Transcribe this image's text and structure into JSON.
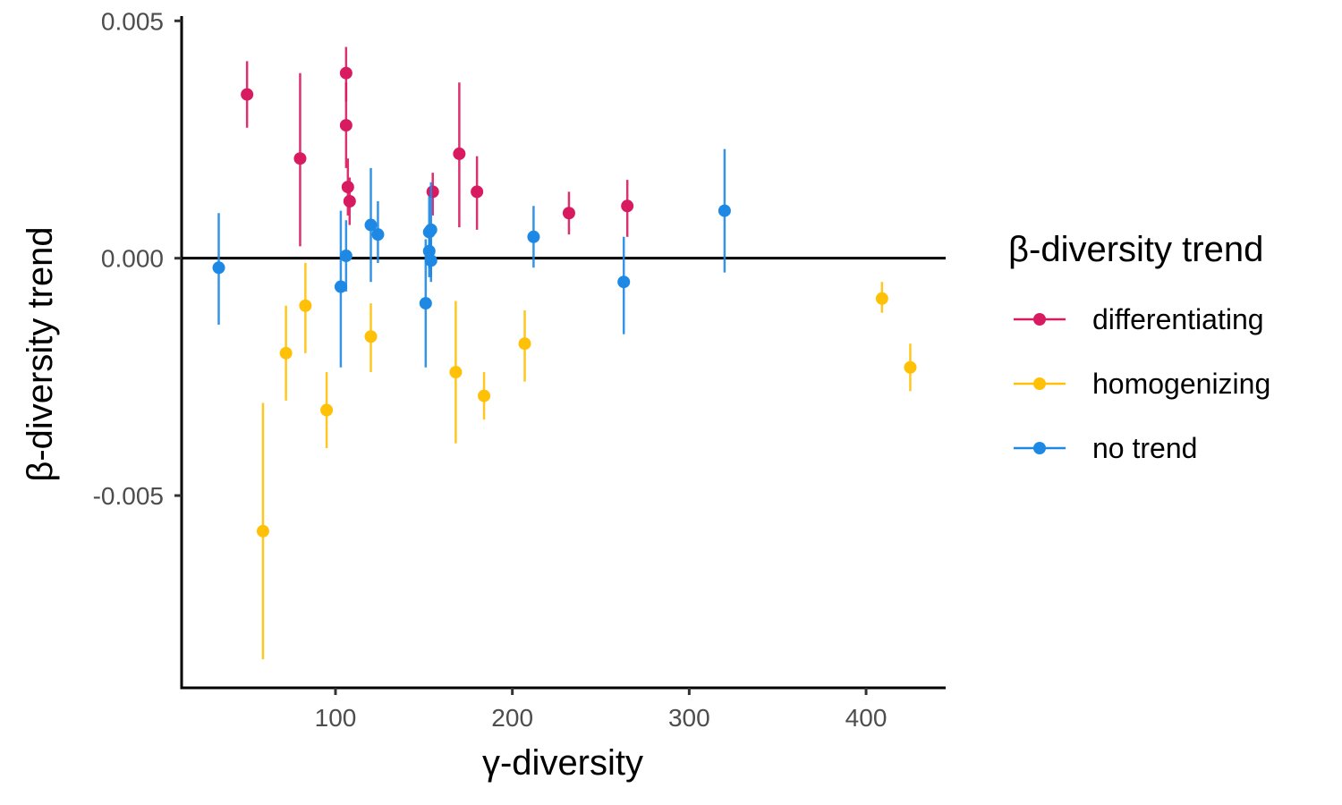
{
  "chart_data": {
    "type": "scatter",
    "xlabel": "γ-diversity",
    "ylabel": "β-diversity trend",
    "xlim": [
      13,
      445
    ],
    "ylim": [
      -0.00905,
      0.0051
    ],
    "x_ticks": [
      100,
      200,
      300,
      400
    ],
    "x_tick_labels": [
      "100",
      "200",
      "300",
      "400"
    ],
    "y_ticks": [
      0.005,
      0.0,
      -0.005
    ],
    "y_tick_labels": [
      "0.005",
      "0.000",
      "-0.005"
    ],
    "grid": false,
    "reference_line_y": 0,
    "legend": {
      "title": "β-diversity trend",
      "placement": "right"
    },
    "series": [
      {
        "name": "differentiating",
        "color": "#D81B60",
        "points": [
          {
            "x": 50,
            "y": 0.00345,
            "lo": 0.00275,
            "hi": 0.00415
          },
          {
            "x": 80,
            "y": 0.0021,
            "lo": 0.00025,
            "hi": 0.0039
          },
          {
            "x": 106,
            "y": 0.0039,
            "lo": 0.0033,
            "hi": 0.00445
          },
          {
            "x": 106,
            "y": 0.0028,
            "lo": 0.0019,
            "hi": 0.0037
          },
          {
            "x": 107,
            "y": 0.0015,
            "lo": 0.0009,
            "hi": 0.0021
          },
          {
            "x": 108,
            "y": 0.0012,
            "lo": 0.0007,
            "hi": 0.0017
          },
          {
            "x": 155,
            "y": 0.0014,
            "lo": 0.0009,
            "hi": 0.0018
          },
          {
            "x": 170,
            "y": 0.0022,
            "lo": 0.00065,
            "hi": 0.0037
          },
          {
            "x": 180,
            "y": 0.0014,
            "lo": 0.0006,
            "hi": 0.00215
          },
          {
            "x": 232,
            "y": 0.00095,
            "lo": 0.0005,
            "hi": 0.0014
          },
          {
            "x": 265,
            "y": 0.0011,
            "lo": 0.00045,
            "hi": 0.00165
          }
        ]
      },
      {
        "name": "homogenizing",
        "color": "#FFC107",
        "points": [
          {
            "x": 59,
            "y": -0.00575,
            "lo": -0.00845,
            "hi": -0.00305
          },
          {
            "x": 72,
            "y": -0.002,
            "lo": -0.003,
            "hi": -0.001
          },
          {
            "x": 83,
            "y": -0.001,
            "lo": -0.002,
            "hi": -0.0001
          },
          {
            "x": 95,
            "y": -0.0032,
            "lo": -0.004,
            "hi": -0.0024
          },
          {
            "x": 120,
            "y": -0.00165,
            "lo": -0.0024,
            "hi": -0.00095
          },
          {
            "x": 168,
            "y": -0.0024,
            "lo": -0.0039,
            "hi": -0.0009
          },
          {
            "x": 184,
            "y": -0.0029,
            "lo": -0.0034,
            "hi": -0.0024
          },
          {
            "x": 207,
            "y": -0.0018,
            "lo": -0.0026,
            "hi": -0.0011
          },
          {
            "x": 409,
            "y": -0.00085,
            "lo": -0.00115,
            "hi": -0.0005
          },
          {
            "x": 425,
            "y": -0.0023,
            "lo": -0.0028,
            "hi": -0.0018
          }
        ]
      },
      {
        "name": "no trend",
        "color": "#1E88E5",
        "points": [
          {
            "x": 34,
            "y": -0.0002,
            "lo": -0.0014,
            "hi": 0.00095
          },
          {
            "x": 103,
            "y": -0.0006,
            "lo": -0.0023,
            "hi": 0.001
          },
          {
            "x": 106,
            "y": 5e-05,
            "lo": -0.0007,
            "hi": 0.0008
          },
          {
            "x": 120,
            "y": 0.0007,
            "lo": -0.0005,
            "hi": 0.0019
          },
          {
            "x": 124,
            "y": 0.0005,
            "lo": -0.0001,
            "hi": 0.0012
          },
          {
            "x": 151,
            "y": -0.00095,
            "lo": -0.0023,
            "hi": 0.0004
          },
          {
            "x": 153,
            "y": 0.00015,
            "lo": -0.0004,
            "hi": 0.0007
          },
          {
            "x": 153,
            "y": 0.00055,
            "lo": -0.0002,
            "hi": 0.0013
          },
          {
            "x": 154,
            "y": 0.0006,
            "lo": -0.0004,
            "hi": 0.0016
          },
          {
            "x": 154,
            "y": -5e-05,
            "lo": -0.0005,
            "hi": 0.0004
          },
          {
            "x": 212,
            "y": 0.00045,
            "lo": -0.0002,
            "hi": 0.0011
          },
          {
            "x": 263,
            "y": -0.0005,
            "lo": -0.0016,
            "hi": 0.00045
          },
          {
            "x": 320,
            "y": 0.001,
            "lo": -0.0003,
            "hi": 0.0023
          }
        ]
      }
    ]
  }
}
